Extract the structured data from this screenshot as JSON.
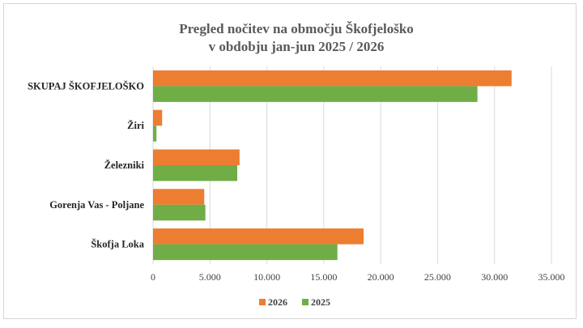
{
  "chart_data": {
    "type": "bar",
    "orientation": "horizontal",
    "title_lines": [
      "Pregled nočitev na območju Škofjeloško",
      "v obdobju jan-jun 2025 / 2026"
    ],
    "categories": [
      "SKUPAJ ŠKOFJELOŠKO",
      "Žiri",
      "Železniki",
      "Gorenja Vas - Poljane",
      "Škofja Loka"
    ],
    "series": [
      {
        "name": "2026",
        "color": "#ED7D31",
        "values": [
          31500,
          800,
          7600,
          4500,
          18500
        ]
      },
      {
        "name": "2025",
        "color": "#70AD47",
        "values": [
          28500,
          300,
          7400,
          4600,
          16200
        ]
      }
    ],
    "xlim": [
      0,
      35000
    ],
    "ticks": [
      0,
      5000,
      10000,
      15000,
      20000,
      25000,
      30000,
      35000
    ],
    "tick_labels": [
      "0",
      "5.000",
      "10.000",
      "15.000",
      "20.000",
      "25.000",
      "30.000",
      "35.000"
    ],
    "grid": true,
    "legend_position": "bottom"
  }
}
